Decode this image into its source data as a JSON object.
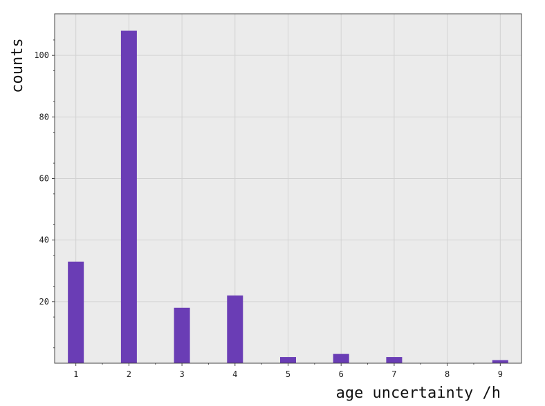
{
  "chart_data": {
    "type": "bar",
    "title": "",
    "xlabel": "age uncertainty /h",
    "ylabel": "counts",
    "x": [
      1,
      2,
      3,
      4,
      5,
      6,
      7,
      8,
      9
    ],
    "values": [
      33,
      108,
      18,
      22,
      2,
      3,
      2,
      0,
      1
    ],
    "xticks": [
      "1",
      "2",
      "3",
      "4",
      "5",
      "6",
      "7",
      "8",
      "9"
    ],
    "yticks": [
      "20",
      "40",
      "60",
      "80",
      "100"
    ],
    "xlim": [
      0.6,
      9.4
    ],
    "ylim": [
      0,
      113.5
    ],
    "grid": true,
    "legend": "none",
    "colors": {
      "bar": "#6a3db5",
      "plot_background": "#ebebeb",
      "grid": "#d2d2d2",
      "frame": "#444444"
    }
  }
}
